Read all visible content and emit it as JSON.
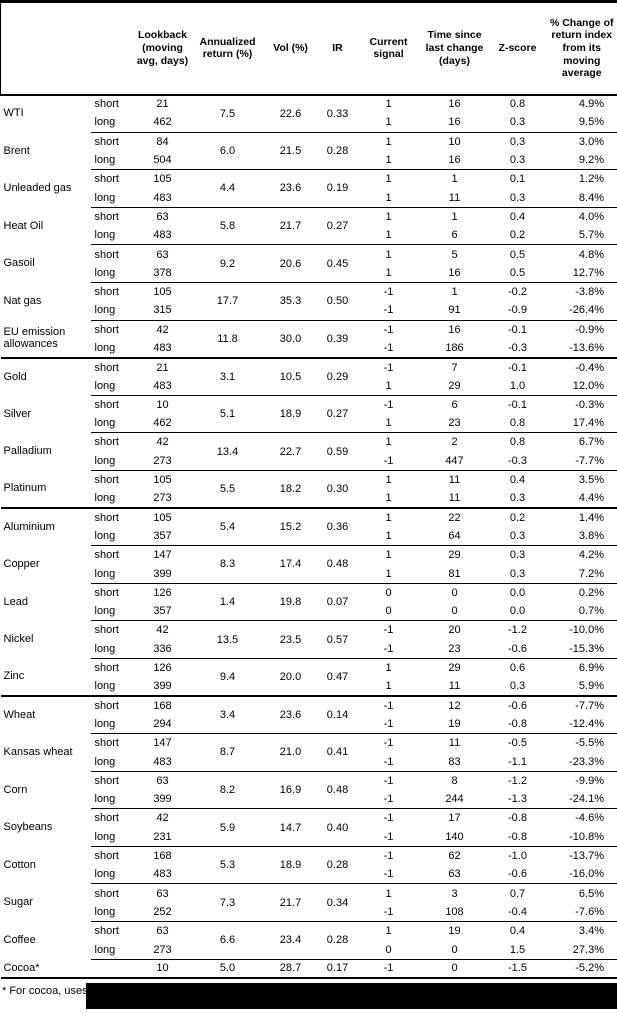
{
  "table": {
    "headers": {
      "name": "",
      "side": "",
      "lookback": "Lookback (moving avg, days)",
      "annualized": "Annualized return (%)",
      "vol": "Vol (%)",
      "ir": "IR",
      "signal": "Current signal",
      "time_since": "Time since last change (days)",
      "zscore": "Z-score",
      "pct_change": "% Change of return index from its moving average"
    },
    "commodities": [
      {
        "name": "WTI",
        "section_start": false,
        "annualized_return": "7.5",
        "vol": "22.6",
        "ir": "0.33",
        "rows": [
          {
            "side": "short",
            "lookback": "21",
            "signal": "1",
            "time_since": "16",
            "zscore": "0.8",
            "pct_change": "4.9%"
          },
          {
            "side": "long",
            "lookback": "462",
            "signal": "1",
            "time_since": "16",
            "zscore": "0.3",
            "pct_change": "9.5%"
          }
        ]
      },
      {
        "name": "Brent",
        "section_start": false,
        "annualized_return": "6.0",
        "vol": "21.5",
        "ir": "0.28",
        "rows": [
          {
            "side": "short",
            "lookback": "84",
            "signal": "1",
            "time_since": "10",
            "zscore": "0.3",
            "pct_change": "3.0%"
          },
          {
            "side": "long",
            "lookback": "504",
            "signal": "1",
            "time_since": "16",
            "zscore": "0.3",
            "pct_change": "9.2%"
          }
        ]
      },
      {
        "name": "Unleaded gas",
        "section_start": false,
        "annualized_return": "4.4",
        "vol": "23.6",
        "ir": "0.19",
        "rows": [
          {
            "side": "short",
            "lookback": "105",
            "signal": "1",
            "time_since": "1",
            "zscore": "0.1",
            "pct_change": "1.2%"
          },
          {
            "side": "long",
            "lookback": "483",
            "signal": "1",
            "time_since": "11",
            "zscore": "0.3",
            "pct_change": "8.4%"
          }
        ]
      },
      {
        "name": "Heat Oil",
        "section_start": false,
        "annualized_return": "5.8",
        "vol": "21.7",
        "ir": "0.27",
        "rows": [
          {
            "side": "short",
            "lookback": "63",
            "signal": "1",
            "time_since": "1",
            "zscore": "0.4",
            "pct_change": "4.0%"
          },
          {
            "side": "long",
            "lookback": "483",
            "signal": "1",
            "time_since": "6",
            "zscore": "0.2",
            "pct_change": "5.7%"
          }
        ]
      },
      {
        "name": "Gasoil",
        "section_start": false,
        "annualized_return": "9.2",
        "vol": "20.6",
        "ir": "0.45",
        "rows": [
          {
            "side": "short",
            "lookback": "63",
            "signal": "1",
            "time_since": "5",
            "zscore": "0.5",
            "pct_change": "4.8%"
          },
          {
            "side": "long",
            "lookback": "378",
            "signal": "1",
            "time_since": "16",
            "zscore": "0.5",
            "pct_change": "12.7%"
          }
        ]
      },
      {
        "name": "Nat gas",
        "section_start": false,
        "annualized_return": "17.7",
        "vol": "35.3",
        "ir": "0.50",
        "rows": [
          {
            "side": "short",
            "lookback": "105",
            "signal": "-1",
            "time_since": "1",
            "zscore": "-0.2",
            "pct_change": "-3.8%"
          },
          {
            "side": "long",
            "lookback": "315",
            "signal": "-1",
            "time_since": "91",
            "zscore": "-0.9",
            "pct_change": "-26.4%"
          }
        ]
      },
      {
        "name": "EU emission allowances",
        "section_start": false,
        "annualized_return": "11.8",
        "vol": "30.0",
        "ir": "0.39",
        "rows": [
          {
            "side": "short",
            "lookback": "42",
            "signal": "-1",
            "time_since": "16",
            "zscore": "-0.1",
            "pct_change": "-0.9%"
          },
          {
            "side": "long",
            "lookback": "483",
            "signal": "-1",
            "time_since": "186",
            "zscore": "-0.3",
            "pct_change": "-13.6%"
          }
        ]
      },
      {
        "name": "Gold",
        "section_start": true,
        "annualized_return": "3.1",
        "vol": "10.5",
        "ir": "0.29",
        "rows": [
          {
            "side": "short",
            "lookback": "21",
            "signal": "-1",
            "time_since": "7",
            "zscore": "-0.1",
            "pct_change": "-0.4%"
          },
          {
            "side": "long",
            "lookback": "483",
            "signal": "1",
            "time_since": "29",
            "zscore": "1.0",
            "pct_change": "12.0%"
          }
        ]
      },
      {
        "name": "Silver",
        "section_start": false,
        "annualized_return": "5.1",
        "vol": "18.9",
        "ir": "0.27",
        "rows": [
          {
            "side": "short",
            "lookback": "10",
            "signal": "-1",
            "time_since": "6",
            "zscore": "-0.1",
            "pct_change": "-0.3%"
          },
          {
            "side": "long",
            "lookback": "462",
            "signal": "1",
            "time_since": "23",
            "zscore": "0.8",
            "pct_change": "17.4%"
          }
        ]
      },
      {
        "name": "Palladium",
        "section_start": false,
        "annualized_return": "13.4",
        "vol": "22.7",
        "ir": "0.59",
        "rows": [
          {
            "side": "short",
            "lookback": "42",
            "signal": "1",
            "time_since": "2",
            "zscore": "0.8",
            "pct_change": "6.7%"
          },
          {
            "side": "long",
            "lookback": "273",
            "signal": "-1",
            "time_since": "447",
            "zscore": "-0.3",
            "pct_change": "-7.7%"
          }
        ]
      },
      {
        "name": "Platinum",
        "section_start": false,
        "annualized_return": "5.5",
        "vol": "18.2",
        "ir": "0.30",
        "rows": [
          {
            "side": "short",
            "lookback": "105",
            "signal": "1",
            "time_since": "11",
            "zscore": "0.4",
            "pct_change": "3.5%"
          },
          {
            "side": "long",
            "lookback": "273",
            "signal": "1",
            "time_since": "11",
            "zscore": "0.3",
            "pct_change": "4.4%"
          }
        ]
      },
      {
        "name": "Aluminium",
        "section_start": true,
        "annualized_return": "5.4",
        "vol": "15.2",
        "ir": "0.36",
        "rows": [
          {
            "side": "short",
            "lookback": "105",
            "signal": "1",
            "time_since": "22",
            "zscore": "0.2",
            "pct_change": "1.4%"
          },
          {
            "side": "long",
            "lookback": "357",
            "signal": "1",
            "time_since": "64",
            "zscore": "0.3",
            "pct_change": "3.8%"
          }
        ]
      },
      {
        "name": "Copper",
        "section_start": false,
        "annualized_return": "8.3",
        "vol": "17.4",
        "ir": "0.48",
        "rows": [
          {
            "side": "short",
            "lookback": "147",
            "signal": "1",
            "time_since": "29",
            "zscore": "0.3",
            "pct_change": "4.2%"
          },
          {
            "side": "long",
            "lookback": "399",
            "signal": "1",
            "time_since": "81",
            "zscore": "0.3",
            "pct_change": "7.2%"
          }
        ]
      },
      {
        "name": "Lead",
        "section_start": false,
        "annualized_return": "1.4",
        "vol": "19.8",
        "ir": "0.07",
        "rows": [
          {
            "side": "short",
            "lookback": "126",
            "signal": "0",
            "time_since": "0",
            "zscore": "0.0",
            "pct_change": "0.2%"
          },
          {
            "side": "long",
            "lookback": "357",
            "signal": "0",
            "time_since": "0",
            "zscore": "0.0",
            "pct_change": "0.7%"
          }
        ]
      },
      {
        "name": "Nickel",
        "section_start": false,
        "annualized_return": "13.5",
        "vol": "23.5",
        "ir": "0.57",
        "rows": [
          {
            "side": "short",
            "lookback": "42",
            "signal": "-1",
            "time_since": "20",
            "zscore": "-1.2",
            "pct_change": "-10.0%"
          },
          {
            "side": "long",
            "lookback": "336",
            "signal": "-1",
            "time_since": "23",
            "zscore": "-0.6",
            "pct_change": "-15.3%"
          }
        ]
      },
      {
        "name": "Zinc",
        "section_start": false,
        "annualized_return": "9.4",
        "vol": "20.0",
        "ir": "0.47",
        "rows": [
          {
            "side": "short",
            "lookback": "126",
            "signal": "1",
            "time_since": "29",
            "zscore": "0.6",
            "pct_change": "6.9%"
          },
          {
            "side": "long",
            "lookback": "399",
            "signal": "1",
            "time_since": "11",
            "zscore": "0.3",
            "pct_change": "5.9%"
          }
        ]
      },
      {
        "name": "Wheat",
        "section_start": true,
        "annualized_return": "3.4",
        "vol": "23.6",
        "ir": "0.14",
        "rows": [
          {
            "side": "short",
            "lookback": "168",
            "signal": "-1",
            "time_since": "12",
            "zscore": "-0.6",
            "pct_change": "-7.7%"
          },
          {
            "side": "long",
            "lookback": "294",
            "signal": "-1",
            "time_since": "19",
            "zscore": "-0.8",
            "pct_change": "-12.4%"
          }
        ]
      },
      {
        "name": "Kansas wheat",
        "section_start": false,
        "annualized_return": "8.7",
        "vol": "21.0",
        "ir": "0.41",
        "rows": [
          {
            "side": "short",
            "lookback": "147",
            "signal": "-1",
            "time_since": "11",
            "zscore": "-0.5",
            "pct_change": "-5.5%"
          },
          {
            "side": "long",
            "lookback": "483",
            "signal": "-1",
            "time_since": "83",
            "zscore": "-1.1",
            "pct_change": "-23.3%"
          }
        ]
      },
      {
        "name": "Corn",
        "section_start": false,
        "annualized_return": "8.2",
        "vol": "16.9",
        "ir": "0.48",
        "rows": [
          {
            "side": "short",
            "lookback": "63",
            "signal": "-1",
            "time_since": "8",
            "zscore": "-1.2",
            "pct_change": "-9.9%"
          },
          {
            "side": "long",
            "lookback": "399",
            "signal": "-1",
            "time_since": "244",
            "zscore": "-1.3",
            "pct_change": "-24.1%"
          }
        ]
      },
      {
        "name": "Soybeans",
        "section_start": false,
        "annualized_return": "5.9",
        "vol": "14.7",
        "ir": "0.40",
        "rows": [
          {
            "side": "short",
            "lookback": "42",
            "signal": "-1",
            "time_since": "17",
            "zscore": "-0.8",
            "pct_change": "-4.6%"
          },
          {
            "side": "long",
            "lookback": "231",
            "signal": "-1",
            "time_since": "140",
            "zscore": "-0.8",
            "pct_change": "-10.8%"
          }
        ]
      },
      {
        "name": "Cotton",
        "section_start": false,
        "annualized_return": "5.3",
        "vol": "18.9",
        "ir": "0.28",
        "rows": [
          {
            "side": "short",
            "lookback": "168",
            "signal": "-1",
            "time_since": "62",
            "zscore": "-1.0",
            "pct_change": "-13.7%"
          },
          {
            "side": "long",
            "lookback": "483",
            "signal": "-1",
            "time_since": "63",
            "zscore": "-0.6",
            "pct_change": "-16.0%"
          }
        ]
      },
      {
        "name": "Sugar",
        "section_start": false,
        "annualized_return": "7.3",
        "vol": "21.7",
        "ir": "0.34",
        "rows": [
          {
            "side": "short",
            "lookback": "63",
            "signal": "1",
            "time_since": "3",
            "zscore": "0.7",
            "pct_change": "6.5%"
          },
          {
            "side": "long",
            "lookback": "252",
            "signal": "-1",
            "time_since": "108",
            "zscore": "-0.4",
            "pct_change": "-7.6%"
          }
        ]
      },
      {
        "name": "Coffee",
        "section_start": false,
        "annualized_return": "6.6",
        "vol": "23.4",
        "ir": "0.28",
        "rows": [
          {
            "side": "short",
            "lookback": "63",
            "signal": "1",
            "time_since": "19",
            "zscore": "0.4",
            "pct_change": "3.4%"
          },
          {
            "side": "long",
            "lookback": "273",
            "signal": "0",
            "time_since": "0",
            "zscore": "1.5",
            "pct_change": "27.3%"
          }
        ]
      },
      {
        "name": "Cocoa*",
        "section_start": false,
        "annualized_return": "5.0",
        "vol": "28.7",
        "ir": "0.17",
        "rows": [
          {
            "side": "",
            "lookback": "10",
            "signal": "-1",
            "time_since": "0",
            "zscore": "-1.5",
            "pct_change": "-5.2%"
          }
        ]
      }
    ]
  },
  "footnote": {
    "text": "* For cocoa, uses c",
    "redacted": true
  },
  "colors": {
    "border": "#000000",
    "text": "#000000",
    "background": "#ffffff",
    "redaction": "#000000"
  }
}
